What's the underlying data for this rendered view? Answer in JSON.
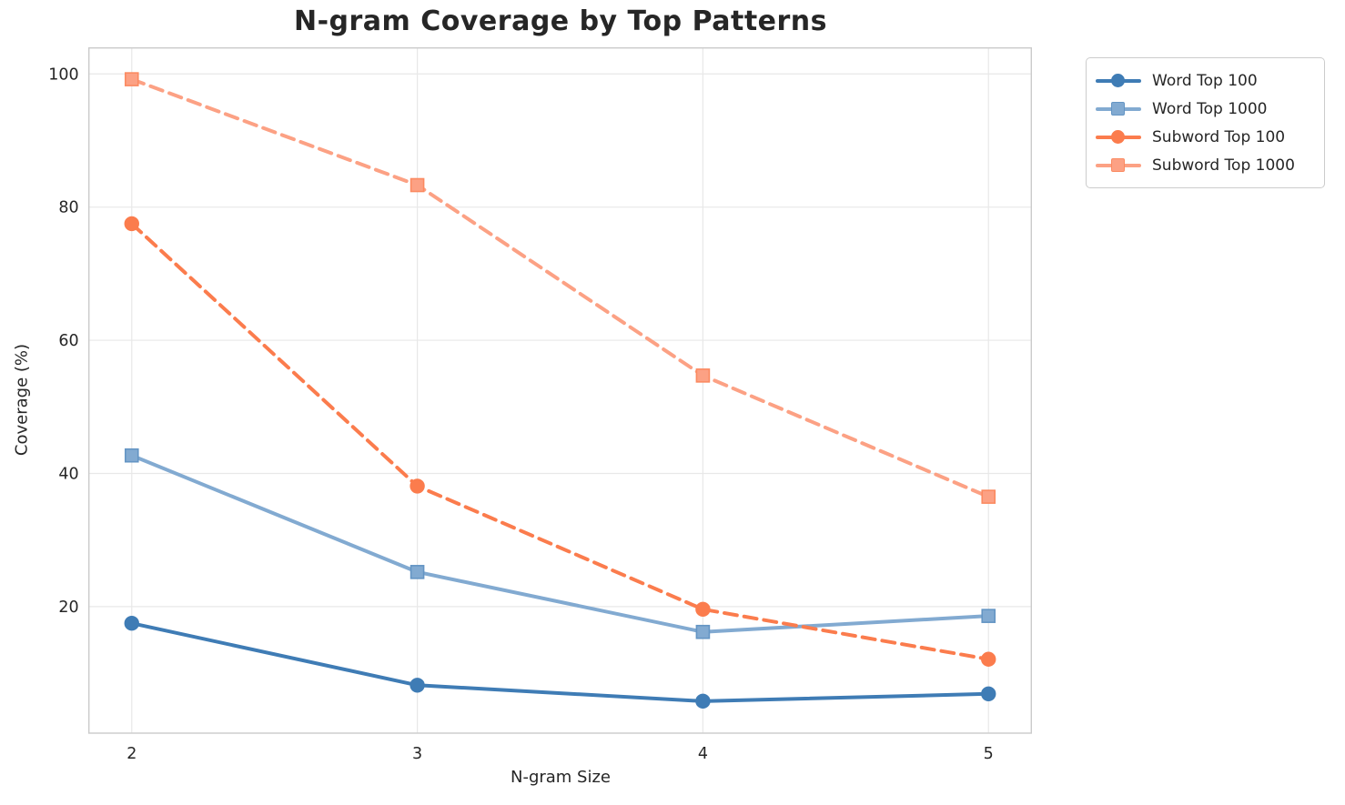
{
  "title": "N-gram Coverage by Top Patterns",
  "chart_data": {
    "type": "line",
    "title": "N-gram Coverage by Top Patterns",
    "xlabel": "N-gram Size",
    "ylabel": "Coverage (%)",
    "x": [
      2,
      3,
      4,
      5
    ],
    "xticks": [
      2,
      3,
      4,
      5
    ],
    "yticks": [
      20,
      40,
      60,
      80,
      100
    ],
    "xlim": [
      1.85,
      5.15
    ],
    "ylim": [
      1.0,
      103.9
    ],
    "grid": true,
    "legend_position": "outside-upper-right",
    "series": [
      {
        "name": "Word Top 100",
        "values": [
          17.5,
          8.2,
          5.8,
          6.9
        ],
        "color": "#3f7cb5",
        "edge_color": "#3f7cb5",
        "marker": "circle",
        "line_style": "solid"
      },
      {
        "name": "Word Top 1000",
        "values": [
          42.7,
          25.2,
          16.2,
          18.6
        ],
        "color": "#82aad1",
        "edge_color": "#6495c4",
        "marker": "square",
        "line_style": "solid"
      },
      {
        "name": "Subword Top 100",
        "values": [
          77.5,
          38.1,
          19.6,
          12.1
        ],
        "color": "#fb7c4d",
        "edge_color": "#fb7c4d",
        "marker": "circle",
        "line_style": "dashed"
      },
      {
        "name": "Subword Top 1000",
        "values": [
          99.2,
          83.3,
          54.7,
          36.5
        ],
        "color": "#fca184",
        "edge_color": "#fb8a61",
        "marker": "square",
        "line_style": "dashed"
      }
    ]
  },
  "style": {
    "grid_color": "#e8e8e8",
    "spine_color": "#cbcbcb",
    "tick_label_color": "#262626",
    "background": "#ffffff"
  }
}
